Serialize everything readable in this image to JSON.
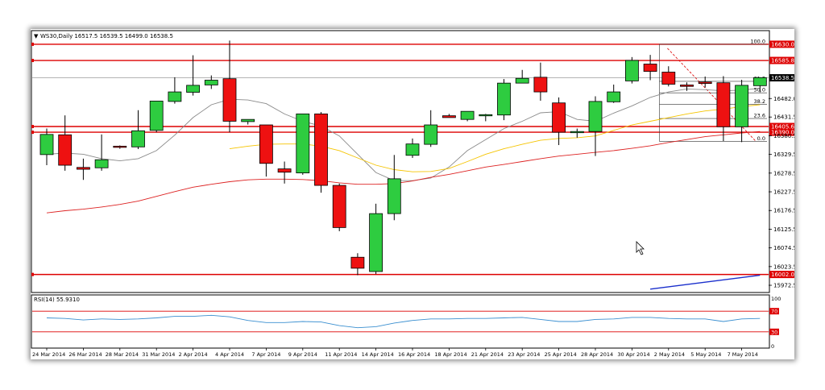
{
  "header": {
    "symbol_line": "WS30,Daily  16517.5 16539.5 16499.0 16538.5"
  },
  "colors": {
    "bull": "#2ecc40",
    "bear": "#ee1111",
    "hline": "#dd0000",
    "ma_fast": "#8a8a8a",
    "ma_mid": "#f5c400",
    "ma_slow": "#dd2222",
    "rsi": "#3a8fd0",
    "trend": "#1a2fcc"
  },
  "chart_data": [
    {
      "type": "candlestick",
      "title": "WS30,Daily",
      "ohlc_readout": {
        "open": 16517.5,
        "high": 16539.5,
        "low": 16499.0,
        "close": 16538.5
      },
      "x_tick_labels": [
        "24 Mar 2014",
        "26 Mar 2014",
        "28 Mar 2014",
        "31 Mar 2014",
        "2 Apr 2014",
        "4 Apr 2014",
        "7 Apr 2014",
        "9 Apr 2014",
        "11 Apr 2014",
        "14 Apr 2014",
        "16 Apr 2014",
        "18 Apr 2014",
        "21 Apr 2014",
        "23 Apr 2014",
        "25 Apr 2014",
        "28 Apr 2014",
        "30 Apr 2014",
        "2 May 2014",
        "5 May 2014",
        "7 May 2014"
      ],
      "y_tick_labels": [
        "16482.0",
        "16431.5",
        "16380.5",
        "16329.5",
        "16278.5",
        "16227.5",
        "16176.5",
        "16125.5",
        "16074.5",
        "16023.5",
        "15972.5"
      ],
      "ylim": [
        15955,
        16665
      ],
      "candles": [
        {
          "o": 16329,
          "h": 16400,
          "l": 16300,
          "c": 16384
        },
        {
          "o": 16383,
          "h": 16436,
          "l": 16285,
          "c": 16300
        },
        {
          "o": 16294,
          "h": 16318,
          "l": 16260,
          "c": 16289
        },
        {
          "o": 16293,
          "h": 16384,
          "l": 16285,
          "c": 16315
        },
        {
          "o": 16352,
          "h": 16354,
          "l": 16345,
          "c": 16350
        },
        {
          "o": 16350,
          "h": 16450,
          "l": 16344,
          "c": 16394
        },
        {
          "o": 16395,
          "h": 16475,
          "l": 16390,
          "c": 16475
        },
        {
          "o": 16474,
          "h": 16540,
          "l": 16468,
          "c": 16500
        },
        {
          "o": 16499,
          "h": 16600,
          "l": 16490,
          "c": 16518
        },
        {
          "o": 16519,
          "h": 16545,
          "l": 16508,
          "c": 16532
        },
        {
          "o": 16536,
          "h": 16640,
          "l": 16390,
          "c": 16420
        },
        {
          "o": 16419,
          "h": 16425,
          "l": 16411,
          "c": 16425
        },
        {
          "o": 16410,
          "h": 16410,
          "l": 16269,
          "c": 16305
        },
        {
          "o": 16290,
          "h": 16310,
          "l": 16250,
          "c": 16281
        },
        {
          "o": 16279,
          "h": 16440,
          "l": 16274,
          "c": 16440
        },
        {
          "o": 16440,
          "h": 16445,
          "l": 16225,
          "c": 16245
        },
        {
          "o": 16245,
          "h": 16250,
          "l": 16120,
          "c": 16130
        },
        {
          "o": 16049,
          "h": 16060,
          "l": 16000,
          "c": 16019
        },
        {
          "o": 16010,
          "h": 16195,
          "l": 16003,
          "c": 16168
        },
        {
          "o": 16168,
          "h": 16328,
          "l": 16150,
          "c": 16263
        },
        {
          "o": 16327,
          "h": 16373,
          "l": 16320,
          "c": 16358
        },
        {
          "o": 16357,
          "h": 16450,
          "l": 16350,
          "c": 16410
        },
        {
          "o": 16435,
          "h": 16440,
          "l": 16430,
          "c": 16430
        },
        {
          "o": 16425,
          "h": 16447,
          "l": 16420,
          "c": 16447
        },
        {
          "o": 16435,
          "h": 16440,
          "l": 16420,
          "c": 16438
        },
        {
          "o": 16437,
          "h": 16535,
          "l": 16423,
          "c": 16524
        },
        {
          "o": 16524,
          "h": 16560,
          "l": 16530,
          "c": 16537
        },
        {
          "o": 16540,
          "h": 16580,
          "l": 16476,
          "c": 16500
        },
        {
          "o": 16470,
          "h": 16485,
          "l": 16355,
          "c": 16390
        },
        {
          "o": 16390,
          "h": 16400,
          "l": 16375,
          "c": 16392
        },
        {
          "o": 16392,
          "h": 16488,
          "l": 16325,
          "c": 16474
        },
        {
          "o": 16473,
          "h": 16520,
          "l": 16470,
          "c": 16500
        },
        {
          "o": 16530,
          "h": 16595,
          "l": 16523,
          "c": 16586
        },
        {
          "o": 16576,
          "h": 16601,
          "l": 16532,
          "c": 16556
        },
        {
          "o": 16554,
          "h": 16570,
          "l": 16515,
          "c": 16521
        },
        {
          "o": 16519,
          "h": 16526,
          "l": 16503,
          "c": 16515
        },
        {
          "o": 16527,
          "h": 16542,
          "l": 16512,
          "c": 16523
        },
        {
          "o": 16525,
          "h": 16543,
          "l": 16366,
          "c": 16405
        },
        {
          "o": 16405,
          "h": 16533,
          "l": 16363,
          "c": 16518
        },
        {
          "o": 16517,
          "h": 16540,
          "l": 16499,
          "c": 16539
        }
      ],
      "horizontal_levels": [
        {
          "label": "16630.0",
          "value": 16630
        },
        {
          "label": "16585.8",
          "value": 16585.8
        },
        {
          "label": "16538.5",
          "value": 16538.5
        },
        {
          "label": "16405.6",
          "value": 16405.6
        },
        {
          "label": "16390.0",
          "value": 16390
        },
        {
          "label": "16002.0",
          "value": 16002
        }
      ],
      "fibonacci": {
        "high": 16630,
        "low": 16365,
        "levels": [
          {
            "label": "100.0",
            "pct": 100
          },
          {
            "label": "61.8",
            "pct": 61.8
          },
          {
            "label": "50.0",
            "pct": 50
          },
          {
            "label": "38.2",
            "pct": 38.2
          },
          {
            "label": "23.6",
            "pct": 23.6
          },
          {
            "label": "0.0",
            "pct": 0
          }
        ]
      },
      "moving_averages": [
        {
          "role": "fast",
          "values": [
            16330,
            16333,
            16330,
            16318,
            16312,
            16318,
            16340,
            16382,
            16430,
            16465,
            16480,
            16478,
            16468,
            16440,
            16420,
            16407,
            16380,
            16330,
            16280,
            16258,
            16258,
            16265,
            16295,
            16340,
            16370,
            16400,
            16420,
            16443,
            16446,
            16425,
            16420,
            16442,
            16462,
            16485,
            16500,
            16508,
            16506,
            16503,
            16505,
            16510
          ]
        },
        {
          "role": "mid",
          "values": [
            null,
            null,
            null,
            null,
            null,
            null,
            null,
            null,
            null,
            null,
            16345,
            16352,
            16357,
            16358,
            16358,
            16352,
            16340,
            16320,
            16300,
            16288,
            16282,
            16283,
            16291,
            16310,
            16330,
            16345,
            16357,
            16368,
            16373,
            16375,
            16380,
            16395,
            16410,
            16420,
            16430,
            16440,
            16448,
            16453,
            16460,
            16465
          ]
        },
        {
          "role": "slow",
          "values": [
            16170,
            16176,
            16180,
            16186,
            16193,
            16202,
            16215,
            16228,
            16240,
            16248,
            16255,
            16260,
            16262,
            16262,
            16261,
            16258,
            16252,
            16248,
            16248,
            16250,
            16257,
            16267,
            16275,
            16285,
            16295,
            16302,
            16310,
            16318,
            16325,
            16330,
            16335,
            16340,
            16346,
            16353,
            16362,
            16370,
            16378,
            16383,
            16388,
            16392
          ]
        }
      ],
      "trendline": {
        "from_candle": 33,
        "from_value": 15962,
        "to_candle": 39,
        "to_value": 16000
      }
    },
    {
      "type": "line",
      "title": "RSI(14) 55.9310",
      "ylim": [
        0,
        100
      ],
      "y_tick_labels": [
        "100",
        "70",
        "30",
        "0"
      ],
      "levels": [
        70,
        30
      ],
      "values": [
        57,
        56,
        53,
        55,
        54,
        55,
        57,
        60,
        60,
        62,
        59,
        52,
        48,
        48,
        50,
        49,
        42,
        38,
        40,
        47,
        52,
        55,
        55,
        56,
        56,
        57,
        58,
        54,
        50,
        50,
        54,
        55,
        58,
        58,
        56,
        55,
        55,
        50,
        55,
        56
      ]
    }
  ]
}
